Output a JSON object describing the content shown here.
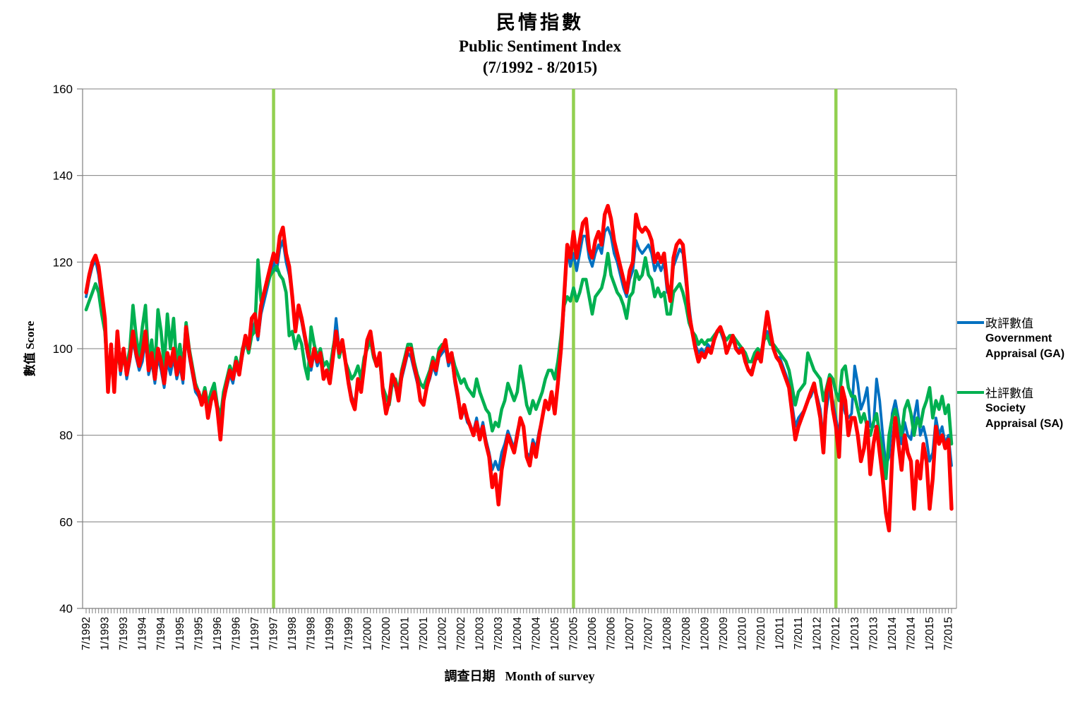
{
  "title": {
    "zh": "民情指數",
    "en": "Public Sentiment Index",
    "range": "(7/1992 - 8/2015)"
  },
  "y_axis": {
    "title": "數值 Score",
    "min": 40,
    "max": 160,
    "ticks": [
      40,
      60,
      80,
      100,
      120,
      140,
      160
    ]
  },
  "x_axis": {
    "title_zh": "調查日期",
    "title_en": "Month of survey",
    "labels": [
      "7/1992",
      "1/1993",
      "7/1993",
      "1/1994",
      "7/1994",
      "1/1995",
      "7/1995",
      "1/1996",
      "7/1996",
      "1/1997",
      "7/1997",
      "1/1998",
      "7/1998",
      "1/1999",
      "7/1999",
      "1/2000",
      "7/2000",
      "1/2001",
      "7/2001",
      "1/2002",
      "7/2002",
      "1/2003",
      "7/2003",
      "1/2004",
      "7/2004",
      "1/2005",
      "7/2005",
      "1/2006",
      "7/2006",
      "1/2007",
      "7/2007",
      "1/2008",
      "7/2008",
      "1/2009",
      "7/2009",
      "1/2010",
      "7/2010",
      "1/2011",
      "7/2011",
      "1/2012",
      "7/2012",
      "1/2013",
      "7/2013",
      "1/2014",
      "7/2014",
      "1/2015",
      "7/2015"
    ]
  },
  "legend": [
    {
      "zh": "政評數值",
      "en1": "Government",
      "en2": "Appraisal (GA)",
      "color": "#0070C0"
    },
    {
      "zh": "社評數值",
      "en1": "Society",
      "en2": "Appraisal (SA)",
      "color": "#00B050"
    }
  ],
  "colors": {
    "gridline": "#808080",
    "axis": "#808080",
    "event_line": "#92D050",
    "ga_blue": "#0070C0",
    "sa_green": "#00B050",
    "psi_red": "#FF0000",
    "background": "#FFFFFF"
  },
  "chart_data": {
    "type": "line",
    "title": "民情指數 Public Sentiment Index (7/1992 - 8/2015)",
    "xlabel": "調查日期 Month of survey",
    "ylabel": "數值 Score",
    "ylim": [
      40,
      160
    ],
    "x_start": "7/1992",
    "x_end": "8/2015",
    "x_interval": "monthly",
    "n_points": 278,
    "grid": "horizontal",
    "legend_position": "right",
    "event_lines": {
      "color": "#92D050",
      "months": [
        "7/1997",
        "7/2005",
        "7/2012"
      ],
      "indices": [
        60,
        156,
        240
      ]
    },
    "series": [
      {
        "name": "政評數值 Government Appraisal (GA)",
        "color": "#0070C0",
        "width": 3.8,
        "values": [
          112,
          116,
          119,
          120.5,
          117,
          111,
          105,
          91,
          100,
          91,
          102,
          94,
          99,
          93,
          97,
          102,
          98,
          95,
          97,
          102,
          94,
          97,
          92,
          98,
          95,
          91,
          97,
          94,
          98,
          93,
          96,
          92,
          103,
          98,
          94,
          90,
          89,
          87,
          89,
          85,
          88,
          89,
          87,
          81,
          88,
          91,
          94,
          92,
          96,
          94,
          98,
          102,
          99,
          104,
          106,
          102,
          108,
          111,
          114,
          117,
          120,
          118,
          123,
          125,
          120,
          117,
          112,
          104,
          109,
          106,
          102,
          98,
          95,
          99,
          96,
          98,
          93,
          95,
          93,
          99,
          107,
          100,
          102,
          97,
          93,
          89,
          87,
          93,
          90,
          96,
          101,
          103,
          99,
          96,
          98,
          89,
          86,
          87,
          93,
          91,
          88,
          93,
          96,
          99,
          98,
          95,
          92,
          88,
          88,
          91,
          93,
          96,
          94,
          98,
          99,
          100,
          96,
          98,
          92,
          88,
          84,
          86,
          83,
          82,
          81,
          84,
          80,
          83,
          79,
          76,
          72,
          74,
          72,
          76,
          78,
          81,
          79,
          77,
          81,
          84,
          82,
          76,
          75,
          79,
          77,
          81,
          84,
          87,
          86,
          89,
          85,
          91,
          99,
          110,
          123,
          119,
          122,
          118,
          122,
          126,
          126,
          121,
          119,
          122,
          124,
          122,
          127,
          128,
          126,
          122,
          120,
          117,
          114,
          112,
          116,
          118,
          125,
          123,
          122,
          123,
          124,
          122,
          118,
          120,
          118,
          120,
          113,
          113,
          119,
          121,
          123,
          122,
          115,
          110,
          104,
          101,
          99,
          100,
          99,
          101,
          100,
          102,
          104,
          104,
          102,
          100,
          101,
          102,
          100,
          100,
          99,
          98,
          95,
          95,
          97,
          98,
          97,
          102,
          104,
          102,
          100,
          98,
          98,
          96,
          94,
          92,
          87,
          82,
          84,
          85,
          86,
          88,
          89,
          91,
          89,
          86,
          79,
          86,
          91,
          88,
          84,
          80,
          88,
          85,
          84,
          85,
          96,
          92,
          86,
          88,
          91,
          82,
          82,
          93,
          88,
          80,
          73,
          75,
          85,
          88,
          84,
          78,
          83,
          80,
          79,
          84,
          88,
          80,
          82,
          79,
          74,
          76,
          84,
          80,
          82,
          78,
          80,
          73
        ]
      },
      {
        "name": "社評數值 Society Appraisal (SA)",
        "color": "#00B050",
        "width": 4.6,
        "values": [
          109,
          111,
          113,
          115,
          113,
          108,
          104,
          93,
          99,
          92,
          100,
          95,
          98,
          96,
          100,
          110,
          103,
          98,
          105,
          110,
          97,
          102,
          95,
          109,
          104,
          96,
          108,
          100,
          107,
          96,
          101,
          95,
          106,
          100,
          96,
          92,
          90,
          88,
          91,
          87,
          90,
          92,
          87,
          84,
          90,
          93,
          96,
          94,
          98,
          95,
          100,
          102,
          99,
          103,
          104,
          120.5,
          111,
          113,
          115,
          117,
          118,
          119,
          117,
          116,
          113,
          103,
          104,
          100,
          103,
          101,
          96,
          93,
          105,
          101,
          98,
          100,
          96,
          97,
          95,
          100,
          104,
          98,
          101,
          97,
          95,
          93,
          94,
          96,
          93,
          98,
          100,
          102,
          98,
          96,
          97,
          91,
          89,
          87,
          92,
          93,
          90,
          95,
          98,
          101,
          101,
          97,
          94,
          92,
          91,
          93,
          95,
          98,
          96,
          100,
          101,
          101,
          98,
          99,
          96,
          94,
          92,
          93,
          91,
          90,
          89,
          93,
          90,
          88,
          86,
          85,
          81,
          83,
          82,
          86,
          88,
          92,
          90,
          88,
          90,
          96,
          92,
          87,
          85,
          88,
          86,
          88,
          90,
          93,
          95,
          95,
          93,
          97,
          103,
          110,
          112,
          111,
          114,
          111,
          113,
          116,
          116,
          112,
          108,
          112,
          113,
          114,
          117,
          122,
          117,
          115,
          113,
          112,
          110,
          107,
          112,
          113,
          118,
          116,
          117,
          121,
          117,
          116,
          112,
          114,
          112,
          113,
          108,
          108,
          113,
          114,
          115,
          113,
          110,
          106,
          104,
          103,
          101,
          102,
          101,
          102,
          102,
          103,
          104,
          104,
          103,
          102,
          103,
          103,
          102,
          101,
          100,
          99,
          97,
          97,
          99,
          100,
          99,
          102,
          103,
          101,
          101,
          100,
          99,
          98,
          97,
          95,
          91,
          87,
          90,
          91,
          92,
          99,
          97,
          95,
          94,
          93,
          88,
          91,
          94,
          93,
          90,
          88,
          95,
          96,
          91,
          89,
          89,
          86,
          83,
          85,
          82,
          80,
          83,
          85,
          80,
          76,
          70,
          80,
          84,
          86,
          83,
          80,
          86,
          88,
          85,
          80,
          84,
          82,
          86,
          88,
          91,
          84,
          88,
          86,
          89,
          85,
          87,
          78
        ]
      },
      {
        "name": "民情指數 Public Sentiment Index (red line, no legend entry)",
        "color": "#FF0000",
        "width": 5.4,
        "values": [
          113,
          117,
          120,
          121.5,
          119,
          113,
          107,
          90,
          101,
          90,
          104,
          95,
          100,
          94,
          98,
          104,
          99,
          96,
          99,
          104,
          95,
          99,
          93,
          100,
          97,
          92,
          99,
          96,
          100,
          94,
          98,
          93,
          105,
          99,
          95,
          91,
          90,
          87,
          90,
          84,
          88,
          90,
          86,
          79,
          88,
          92,
          95,
          93,
          97,
          94,
          99,
          103,
          100,
          107,
          108,
          103,
          110,
          113,
          116,
          119,
          122,
          120,
          126,
          128,
          122,
          119,
          112,
          104,
          110,
          107,
          103,
          99,
          96,
          100,
          97,
          99,
          93,
          95,
          92,
          98,
          104,
          99,
          102,
          97,
          92,
          88,
          86,
          93,
          90,
          96,
          102,
          104,
          99,
          96,
          99,
          90,
          85,
          88,
          94,
          92,
          88,
          94,
          97,
          100,
          100,
          96,
          93,
          88,
          87,
          91,
          94,
          97,
          95,
          99,
          100,
          102,
          97,
          99,
          93,
          89,
          84,
          87,
          84,
          82,
          80,
          83,
          79,
          82,
          78,
          75,
          68,
          71,
          64,
          72,
          76,
          80,
          78,
          76,
          80,
          84,
          82,
          75,
          73,
          78,
          75,
          80,
          84,
          88,
          86,
          90,
          85,
          92,
          100,
          112,
          124,
          121,
          127,
          121,
          125,
          129,
          130,
          123,
          121,
          125,
          127,
          124,
          131,
          133,
          130,
          125,
          122,
          119,
          116,
          113,
          118,
          120,
          131,
          128,
          127,
          128,
          127,
          125,
          120,
          122,
          120,
          122,
          115,
          111,
          121,
          124,
          125,
          124,
          117,
          108,
          104,
          100,
          97,
          99,
          98,
          100,
          99,
          102,
          104,
          105,
          103,
          99,
          101,
          103,
          100,
          99,
          100,
          97,
          95,
          94,
          97,
          99,
          97,
          103,
          108.5,
          104,
          100,
          98,
          97,
          95,
          93,
          91,
          85,
          79,
          82,
          84,
          86,
          88,
          90,
          92,
          88,
          84,
          76,
          90,
          93,
          86,
          82,
          75,
          91,
          88,
          80,
          84,
          84,
          80,
          74,
          77,
          83,
          71,
          78,
          82,
          76,
          70,
          62,
          58,
          75,
          84,
          78,
          72,
          80,
          76,
          74,
          63,
          74,
          70,
          78,
          74,
          63,
          70,
          82,
          78,
          80,
          77,
          79,
          63
        ]
      }
    ]
  }
}
